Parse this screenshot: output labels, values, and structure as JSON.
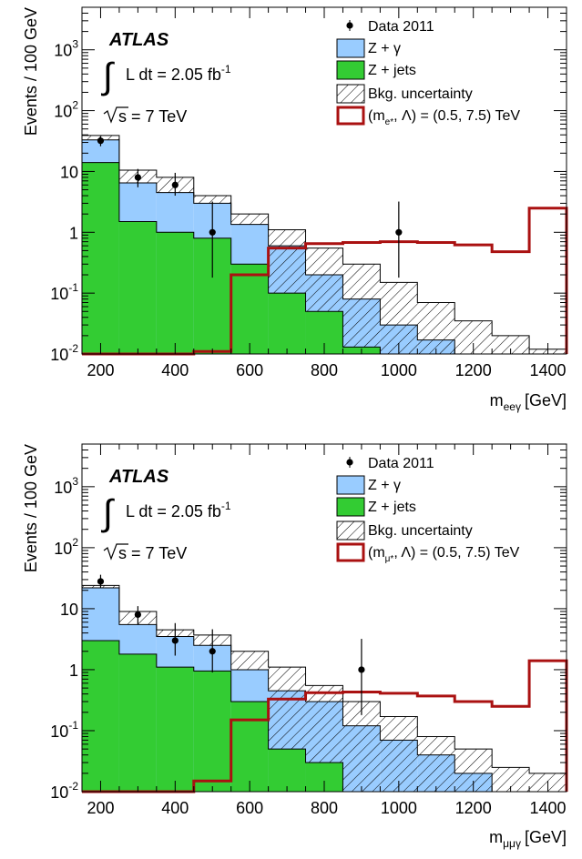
{
  "chart_data": [
    {
      "type": "histogram",
      "experiment_label": "ATLAS",
      "luminosity_text": "L dt = 2.05 fb",
      "luminosity_sup": "-1",
      "energy_text": "s = 7 TeV",
      "ylabel": "Events / 100 GeV",
      "xlabel_main": "m",
      "xlabel_sub": "eeγ",
      "xlabel_unit": "[GeV]",
      "xlim": [
        150,
        1450
      ],
      "ylim": [
        0.01,
        5000
      ],
      "yscale": "log",
      "x_ticks": [
        "200",
        "400",
        "600",
        "800",
        "1000",
        "1200",
        "1400"
      ],
      "y_ticks": [
        {
          "v": 0.01,
          "base": "10",
          "exp": "-2"
        },
        {
          "v": 0.1,
          "base": "10",
          "exp": "-1"
        },
        {
          "v": 1,
          "base": "1",
          "exp": ""
        },
        {
          "v": 10,
          "base": "10",
          "exp": ""
        },
        {
          "v": 100,
          "base": "10",
          "exp": "2"
        },
        {
          "v": 1000,
          "base": "10",
          "exp": "3"
        }
      ],
      "bin_edges": [
        150,
        250,
        350,
        450,
        550,
        650,
        750,
        850,
        950,
        1050,
        1150,
        1250,
        1350,
        1450
      ],
      "series": [
        {
          "name": "Z + jets",
          "color": "#33cc33",
          "values": [
            14,
            1.5,
            1.0,
            0.8,
            0.3,
            0.1,
            0.05,
            0.013,
            0.01,
            0.01,
            0.01,
            0.01,
            0.01
          ]
        },
        {
          "name": "Z + γ",
          "color": "#99ccff",
          "values": [
            33,
            6.5,
            4.5,
            3.0,
            1.35,
            0.6,
            0.2,
            0.08,
            0.03,
            0.017,
            0.01,
            0.01,
            0.01
          ]
        },
        {
          "name": "Bkg. uncertainty",
          "color": "#000000",
          "values": [
            39,
            10.5,
            8.0,
            4.0,
            2.0,
            1.1,
            0.55,
            0.3,
            0.15,
            0.07,
            0.035,
            0.02,
            0.012
          ]
        },
        {
          "name_prefix": "(m",
          "name_sub": "e*",
          "name_suffix": ", Λ) = (0.5, 7.5) TeV",
          "color": "#aa1111",
          "values": [
            0.01,
            0.01,
            0.01,
            0.011,
            0.2,
            0.55,
            0.65,
            0.68,
            0.7,
            0.68,
            0.62,
            0.48,
            2.5
          ]
        }
      ],
      "data": {
        "name": "Data 2011",
        "x": [
          200,
          300,
          400,
          500,
          1000
        ],
        "y": [
          32,
          8,
          6,
          1,
          1
        ],
        "err_low": [
          26,
          5.5,
          4,
          0.18,
          0.18
        ],
        "err_high": [
          38,
          11,
          9.5,
          3.2,
          3.2
        ]
      },
      "legend_position": "top-right"
    },
    {
      "type": "histogram",
      "experiment_label": "ATLAS",
      "luminosity_text": "L dt = 2.05 fb",
      "luminosity_sup": "-1",
      "energy_text": "s = 7 TeV",
      "ylabel": "Events / 100 GeV",
      "xlabel_main": "m",
      "xlabel_sub": "μμγ",
      "xlabel_unit": "[GeV]",
      "xlim": [
        150,
        1450
      ],
      "ylim": [
        0.01,
        5000
      ],
      "yscale": "log",
      "x_ticks": [
        "200",
        "400",
        "600",
        "800",
        "1000",
        "1200",
        "1400"
      ],
      "y_ticks": [
        {
          "v": 0.01,
          "base": "10",
          "exp": "-2"
        },
        {
          "v": 0.1,
          "base": "10",
          "exp": "-1"
        },
        {
          "v": 1,
          "base": "1",
          "exp": ""
        },
        {
          "v": 10,
          "base": "10",
          "exp": ""
        },
        {
          "v": 100,
          "base": "10",
          "exp": "2"
        },
        {
          "v": 1000,
          "base": "10",
          "exp": "3"
        }
      ],
      "bin_edges": [
        150,
        250,
        350,
        450,
        550,
        650,
        750,
        850,
        950,
        1050,
        1150,
        1250,
        1350,
        1450
      ],
      "series": [
        {
          "name": "Z + jets",
          "color": "#33cc33",
          "values": [
            3.0,
            1.8,
            1.1,
            0.95,
            0.3,
            0.05,
            0.03,
            0.01,
            0.01,
            0.01,
            0.01,
            0.01,
            0.01
          ]
        },
        {
          "name": "Z + γ",
          "color": "#99ccff",
          "values": [
            22,
            5.5,
            3.5,
            2.5,
            1.0,
            0.45,
            0.3,
            0.12,
            0.07,
            0.04,
            0.02,
            0.01,
            0.01
          ]
        },
        {
          "name": "Bkg. uncertainty",
          "color": "#000000",
          "values": [
            24,
            9.0,
            4.5,
            3.7,
            2.0,
            1.1,
            0.55,
            0.3,
            0.17,
            0.08,
            0.05,
            0.025,
            0.02
          ]
        },
        {
          "name_prefix": "(m",
          "name_sub": "μ*",
          "name_suffix": ", Λ) = (0.5, 7.5) TeV",
          "color": "#aa1111",
          "values": [
            0.01,
            0.01,
            0.01,
            0.015,
            0.15,
            0.33,
            0.42,
            0.43,
            0.41,
            0.37,
            0.3,
            0.25,
            1.4
          ]
        }
      ],
      "data": {
        "name": "Data 2011",
        "x": [
          200,
          300,
          400,
          500,
          900
        ],
        "y": [
          28,
          8,
          3,
          2,
          1
        ],
        "err_low": [
          22,
          5.5,
          1.7,
          0.9,
          0.18
        ],
        "err_high": [
          36,
          11,
          5.8,
          4.6,
          3.2
        ]
      },
      "legend_position": "top-right"
    }
  ]
}
